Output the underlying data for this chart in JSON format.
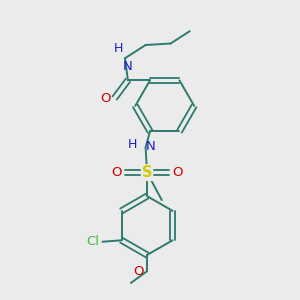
{
  "background_color": "#ebebeb",
  "bond_color": "#2d7a6e",
  "atom_colors": {
    "N": "#1a1acc",
    "O_red": "#cc0000",
    "S": "#cccc00",
    "Cl": "#44bb44"
  },
  "figsize": [
    3.0,
    3.0
  ],
  "dpi": 100,
  "xlim": [
    0,
    10
  ],
  "ylim": [
    0,
    10
  ]
}
